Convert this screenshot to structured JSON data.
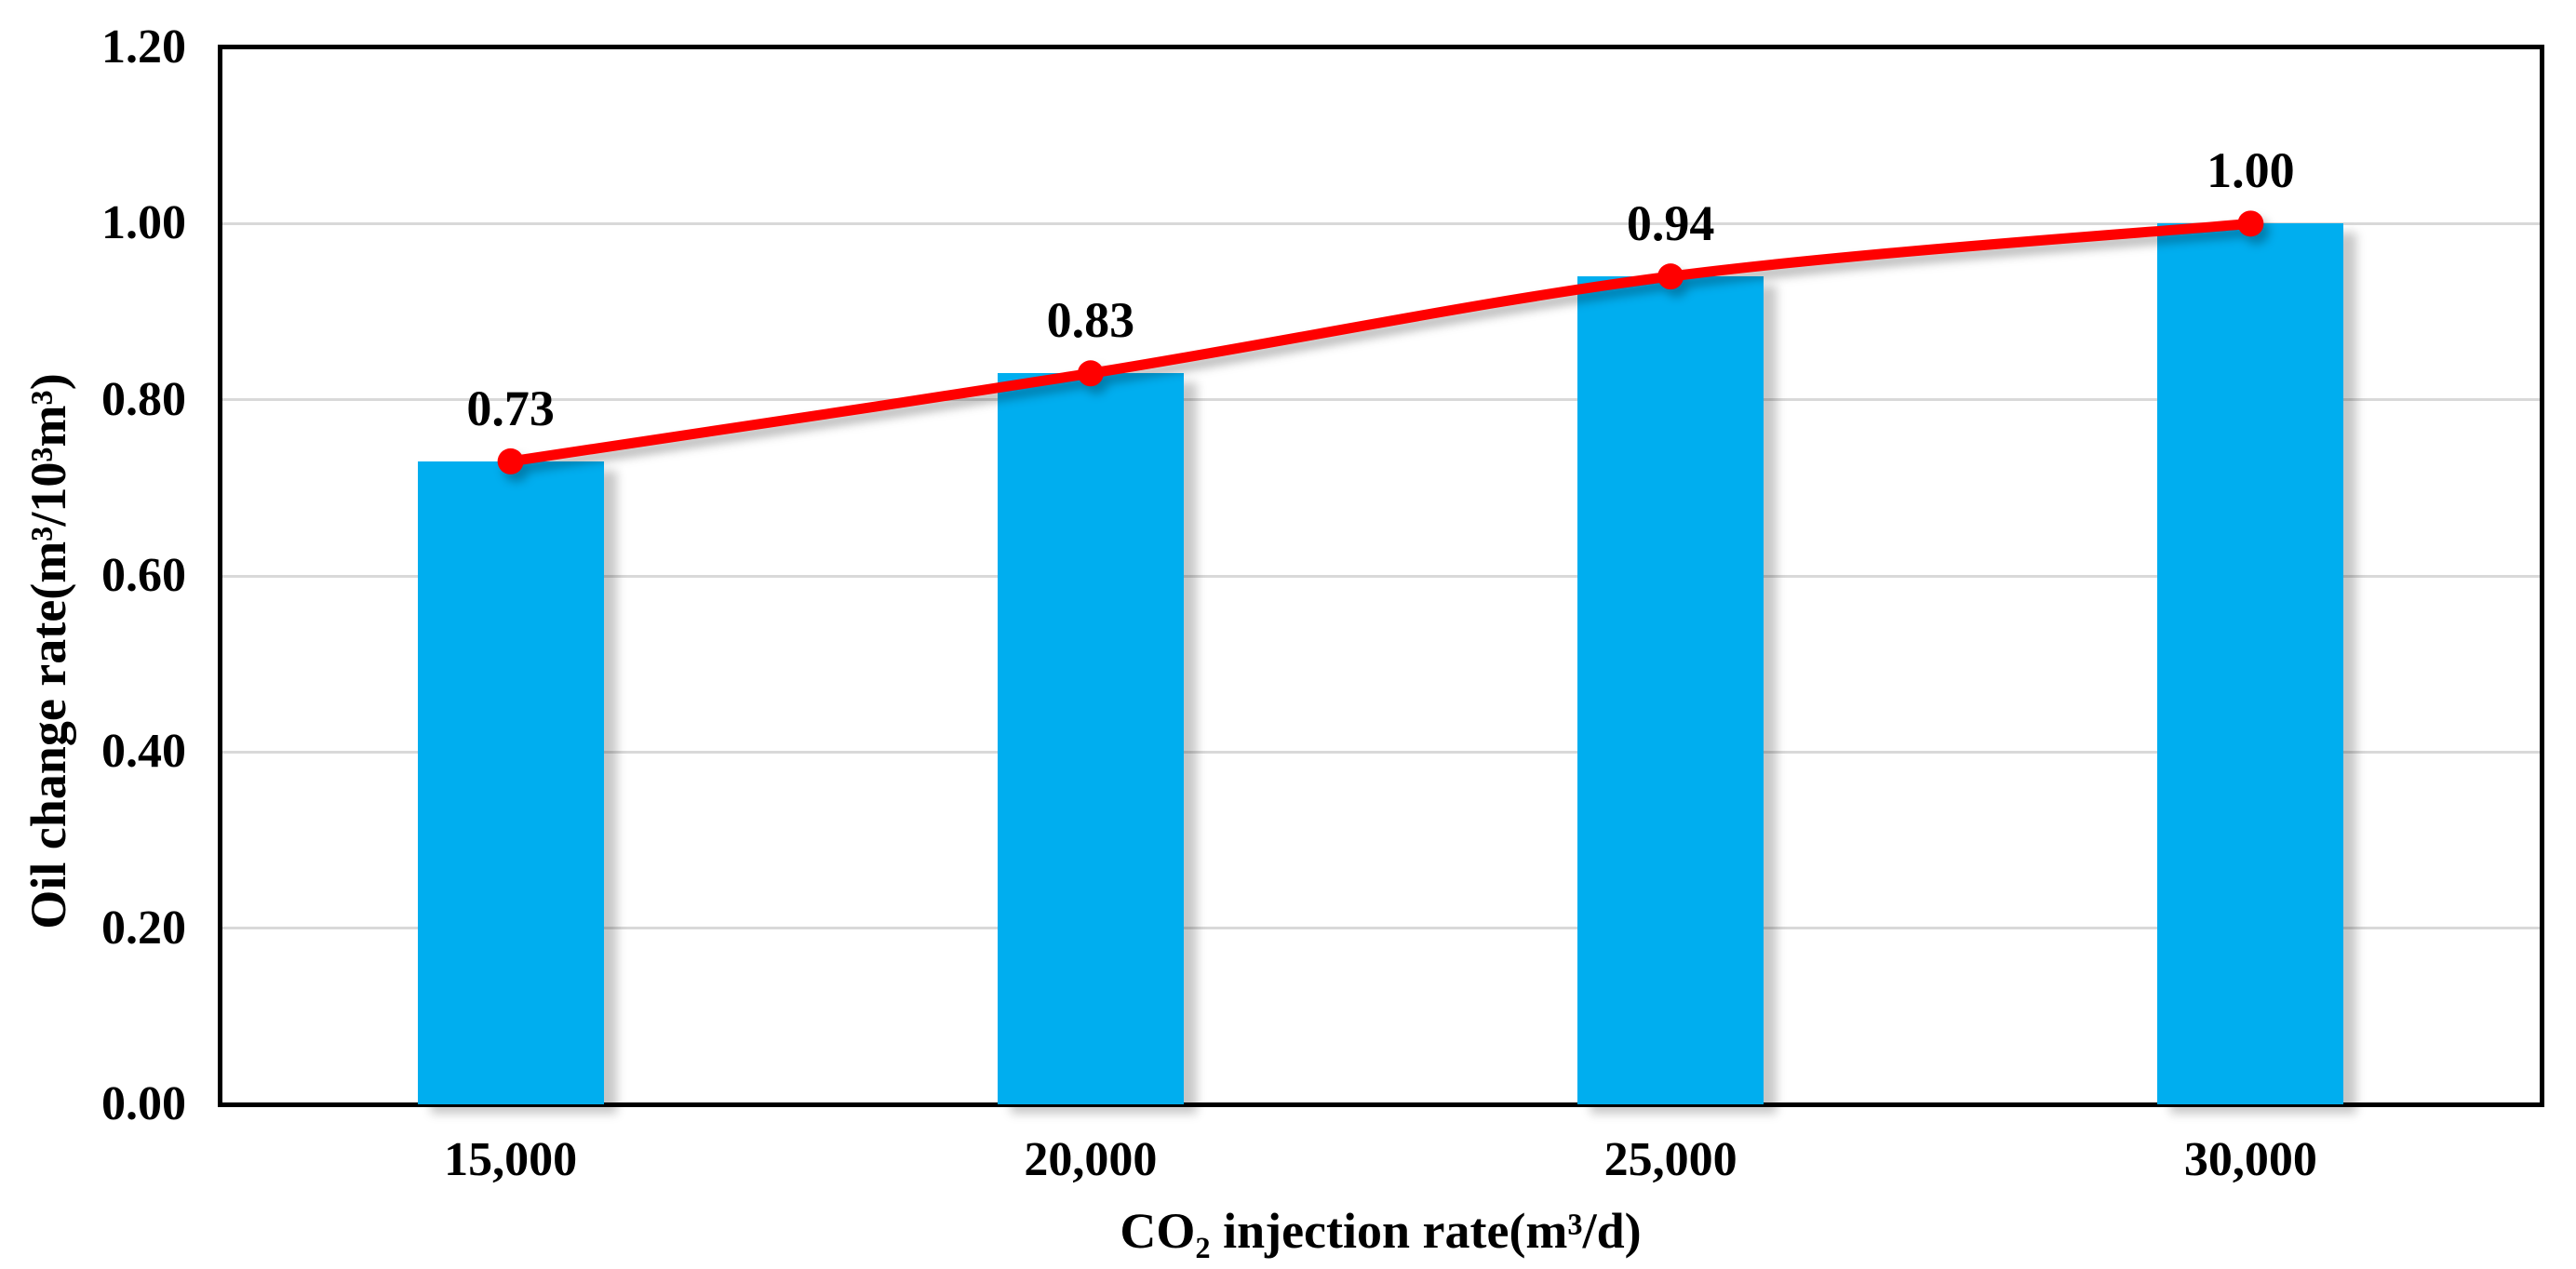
{
  "chart_data": {
    "type": "bar",
    "categories": [
      "15,000",
      "20,000",
      "25,000",
      "30,000"
    ],
    "values": [
      0.73,
      0.83,
      0.94,
      1.0
    ],
    "data_labels": [
      "0.73",
      "0.83",
      "0.94",
      "1.00"
    ],
    "overlay_line": {
      "type": "line",
      "values": [
        0.73,
        0.83,
        0.94,
        1.0
      ],
      "smoothed": true,
      "markers": "circle"
    },
    "xlabel": "CO₂ injection rate(m³/d)",
    "ylabel": "Oil change rate(m³/10³m³)",
    "ylim": [
      0.0,
      1.2
    ],
    "ytick_step": 0.2,
    "yticks": [
      "0.00",
      "0.20",
      "0.40",
      "0.60",
      "0.80",
      "1.00",
      "1.20"
    ],
    "grid": "horizontal",
    "legend_position": "none",
    "colors": {
      "bar": "#00aeef",
      "line": "#ff0000",
      "marker": "#ff0000",
      "gridline": "#d9d9d9",
      "frame": "#000000",
      "text": "#000000"
    }
  }
}
